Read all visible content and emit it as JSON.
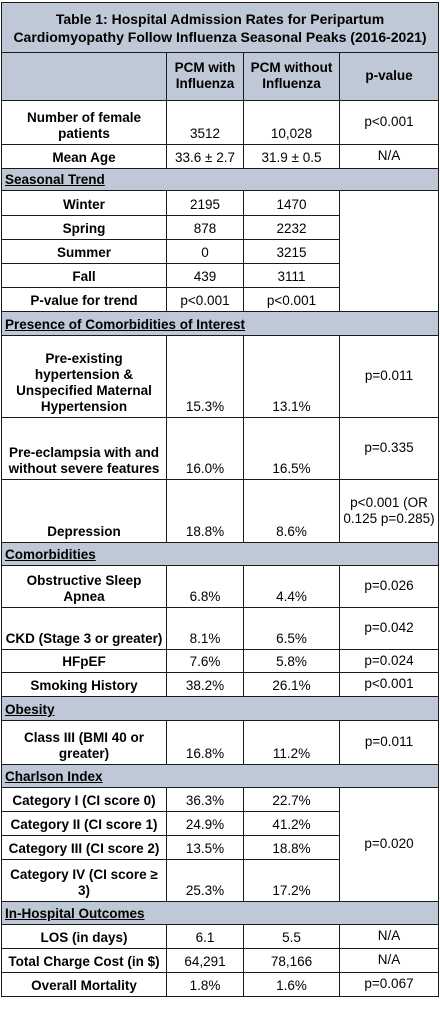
{
  "title": "Table 1: Hospital Admission Rates for Peripartum Cardiomyopathy Follow Influenza Seasonal Peaks (2016-2021)",
  "headers": {
    "col1": "PCM with Influenza",
    "col2": "PCM without Influenza",
    "col3": "p-value"
  },
  "rows": {
    "num_female": {
      "label": "Number of female patients",
      "v1": "3512",
      "v2": "10,028",
      "p": "p<0.001"
    },
    "mean_age": {
      "label": "Mean Age",
      "v1": "33.6 ± 2.7",
      "v2": "31.9 ± 0.5",
      "p": "N/A"
    }
  },
  "seasonal": {
    "title": "Seasonal Trend",
    "rows": [
      {
        "label": "Winter",
        "v1": "2195",
        "v2": "1470"
      },
      {
        "label": "Spring",
        "v1": "878",
        "v2": "2232"
      },
      {
        "label": "Summer",
        "v1": "0",
        "v2": "3215"
      },
      {
        "label": "Fall",
        "v1": "439",
        "v2": "3111"
      },
      {
        "label": "P-value for trend",
        "v1": "p<0.001",
        "v2": "p<0.001"
      }
    ]
  },
  "presence": {
    "title": "Presence of Comorbidities of Interest",
    "rows": [
      {
        "label": "Pre-existing hypertension & Unspecified Maternal Hypertension",
        "v1": "15.3%",
        "v2": "13.1%",
        "p": "p=0.011"
      },
      {
        "label": "Pre-eclampsia with and without severe features",
        "v1": "16.0%",
        "v2": "16.5%",
        "p": "p=0.335"
      },
      {
        "label": "Depression",
        "v1": "18.8%",
        "v2": "8.6%",
        "p": "p<0.001 (OR 0.125 p=0.285)"
      }
    ]
  },
  "comorbidities": {
    "title": "Comorbidities",
    "rows": [
      {
        "label": "Obstructive Sleep Apnea",
        "v1": "6.8%",
        "v2": "4.4%",
        "p": "p=0.026"
      },
      {
        "label": "CKD (Stage 3 or greater)",
        "v1": "8.1%",
        "v2": "6.5%",
        "p": "p=0.042"
      },
      {
        "label": "HFpEF",
        "v1": "7.6%",
        "v2": "5.8%",
        "p": "p=0.024"
      },
      {
        "label": "Smoking History",
        "v1": "38.2%",
        "v2": "26.1%",
        "p": "p<0.001"
      }
    ]
  },
  "obesity": {
    "title": "Obesity",
    "rows": [
      {
        "label": "Class III (BMI 40 or greater)",
        "v1": "16.8%",
        "v2": "11.2%",
        "p": "p=0.011"
      }
    ]
  },
  "charlson": {
    "title": "Charlson Index",
    "p": "p=0.020",
    "rows": [
      {
        "label": "Category I (CI score 0)",
        "v1": "36.3%",
        "v2": "22.7%"
      },
      {
        "label": "Category II (CI score 1)",
        "v1": "24.9%",
        "v2": "41.2%"
      },
      {
        "label": "Category III (CI score 2)",
        "v1": "13.5%",
        "v2": "18.8%"
      },
      {
        "label": "Category IV (CI score ≥ 3)",
        "v1": "25.3%",
        "v2": "17.2%"
      }
    ]
  },
  "outcomes": {
    "title": "In-Hospital Outcomes",
    "rows": [
      {
        "label": "LOS (in days)",
        "v1": "6.1",
        "v2": "5.5",
        "p": "N/A"
      },
      {
        "label": "Total Charge Cost (in $)",
        "v1": "64,291",
        "v2": "78,166",
        "p": "N/A"
      },
      {
        "label": "Overall Mortality",
        "v1": "1.8%",
        "v2": "1.6%",
        "p": "p=0.067"
      }
    ]
  }
}
